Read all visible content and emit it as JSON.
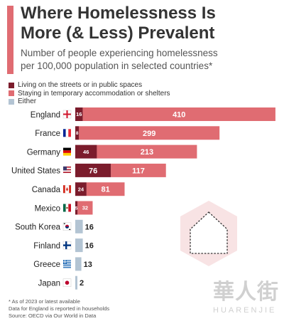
{
  "header": {
    "title_line1": "Where Homelessness Is",
    "title_line2": "More (& Less) Prevalent",
    "subtitle_line1": "Number of people experiencing homelessness",
    "subtitle_line2": "per 100,000 population in selected countries*"
  },
  "colors": {
    "accent": "#e06c72",
    "streets": "#7b1c2c",
    "temporary": "#e06c72",
    "either": "#b3c4d3",
    "house_bg": "#f8e3e4"
  },
  "chart_data": {
    "type": "bar",
    "stacked": true,
    "orientation": "horizontal",
    "categories": [
      "England",
      "France",
      "Germany",
      "United States",
      "Canada",
      "Mexico",
      "South Korea",
      "Finland",
      "Greece",
      "Japan"
    ],
    "flag_icons": [
      "flag-england-icon",
      "flag-france-icon",
      "flag-germany-icon",
      "flag-usa-icon",
      "flag-canada-icon",
      "flag-mexico-icon",
      "flag-south-korea-icon",
      "flag-finland-icon",
      "flag-greece-icon",
      "flag-japan-icon"
    ],
    "series": [
      {
        "name": "Living on the streets or in public spaces",
        "values": [
          16,
          8,
          46,
          76,
          24,
          5,
          null,
          null,
          null,
          null
        ]
      },
      {
        "name": "Staying in temporary accommodation or shelters",
        "values": [
          410,
          299,
          213,
          117,
          81,
          32,
          null,
          null,
          null,
          null
        ]
      },
      {
        "name": "Either",
        "values": [
          null,
          null,
          null,
          null,
          null,
          null,
          16,
          16,
          13,
          2
        ]
      }
    ],
    "grid": false,
    "legend_position": "top-left"
  },
  "footer": {
    "line1": "* As of 2023 or latest available",
    "line2": "Data for England is reported in households",
    "line3": "Source: OECD via Our World in Data"
  },
  "watermark": {
    "chinese": "華人街",
    "latin": "HUARENJIE"
  }
}
